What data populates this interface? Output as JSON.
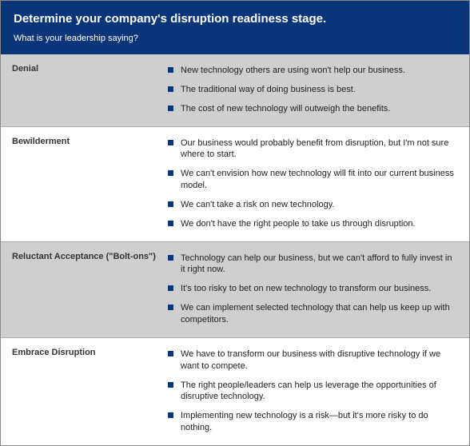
{
  "header": {
    "title": "Determine your company's disruption readiness stage.",
    "subtitle": "What is your leadership saying?"
  },
  "colors": {
    "header_bg": "#0a3679",
    "header_text": "#ffffff",
    "shade_bg": "#cfcfcf",
    "plain_bg": "#ffffff",
    "bullet": "#0a3679",
    "border": "#888888"
  },
  "stages": [
    {
      "name": "Denial",
      "shaded": true,
      "items": [
        "New technology others are using won't help our business.",
        "The traditional way of doing business is best.",
        "The cost of new technology will outweigh the benefits."
      ]
    },
    {
      "name": "Bewilderment",
      "shaded": false,
      "items": [
        "Our business would probably benefit from disruption, but I'm not sure where to start.",
        "We can't envision how new technology will fit into our current business model.",
        "We can't take a risk on new technology.",
        "We don't have the right people to take us through disruption."
      ]
    },
    {
      "name": "Reluctant Acceptance (\"Bolt-ons\")",
      "shaded": true,
      "items": [
        "Technology can help our business, but we can't afford to fully invest in it right now.",
        "It's too risky to bet on new technology to transform our business.",
        "We can implement selected technology that can help us keep up with competitors."
      ]
    },
    {
      "name": "Embrace Disruption",
      "shaded": false,
      "items": [
        "We have to transform our business with disruptive technology if we want to compete.",
        "The right people/leaders can help us leverage the opportunities of disruptive technology.",
        "Implementing new technology is a risk—but it's more risky to do nothing."
      ]
    }
  ]
}
